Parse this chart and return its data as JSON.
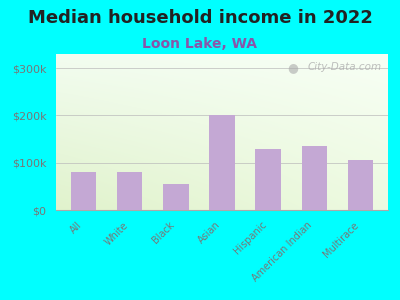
{
  "title": "Median household income in 2022",
  "subtitle": "Loon Lake, WA",
  "categories": [
    "All",
    "White",
    "Black",
    "Asian",
    "Hispanic",
    "American Indian",
    "Multirace"
  ],
  "values": [
    80000,
    80000,
    55000,
    200000,
    130000,
    135000,
    105000
  ],
  "bar_color": "#c4a8d4",
  "background_outer": "#00FFFF",
  "gradient_top": "#f5faf0",
  "gradient_bottom": "#d8eec8",
  "yticks": [
    0,
    100000,
    200000,
    300000
  ],
  "ytick_labels": [
    "$0",
    "$100k",
    "$200k",
    "$300k"
  ],
  "ylim": [
    0,
    330000
  ],
  "title_fontsize": 13,
  "subtitle_fontsize": 10,
  "subtitle_color": "#8855aa",
  "tick_color": "#777777",
  "watermark": "City-Data.com"
}
